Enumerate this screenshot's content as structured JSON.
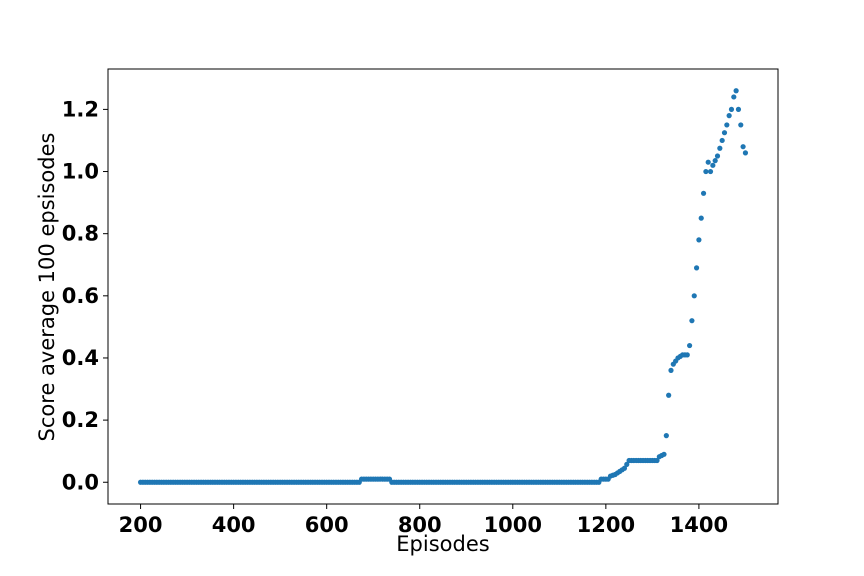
{
  "chart_data": {
    "type": "scatter",
    "title": "",
    "xlabel": "Episodes",
    "ylabel": "Score average 100 epsisodes",
    "xlim": [
      130,
      1570
    ],
    "ylim": [
      -0.07,
      1.33
    ],
    "grid": false,
    "legend": "none",
    "x_ticks": [
      200,
      400,
      600,
      800,
      1000,
      1200,
      1400
    ],
    "x_tick_labels": [
      "200",
      "400",
      "600",
      "800",
      "1000",
      "1200",
      "1400"
    ],
    "y_ticks": [
      0.0,
      0.2,
      0.4,
      0.6,
      0.8,
      1.0,
      1.2
    ],
    "y_tick_labels": [
      "0.0",
      "0.2",
      "0.4",
      "0.6",
      "0.8",
      "1.0",
      "1.2"
    ],
    "marker_color": "#1f77b4",
    "series": [
      {
        "x_start": 200,
        "x_step": 5,
        "x_end": 1500,
        "keypoints": [
          [
            200,
            0.0
          ],
          [
            670,
            0.0
          ],
          [
            675,
            0.01
          ],
          [
            735,
            0.01
          ],
          [
            740,
            0.0
          ],
          [
            1185,
            0.0
          ],
          [
            1190,
            0.01
          ],
          [
            1205,
            0.01
          ],
          [
            1210,
            0.02
          ],
          [
            1220,
            0.025
          ],
          [
            1230,
            0.035
          ],
          [
            1240,
            0.045
          ],
          [
            1250,
            0.07
          ],
          [
            1310,
            0.07
          ],
          [
            1312,
            0.08
          ],
          [
            1325,
            0.09
          ],
          [
            1330,
            0.15
          ],
          [
            1335,
            0.28
          ],
          [
            1340,
            0.36
          ],
          [
            1345,
            0.38
          ],
          [
            1355,
            0.4
          ],
          [
            1365,
            0.41
          ],
          [
            1375,
            0.41
          ],
          [
            1380,
            0.44
          ],
          [
            1390,
            0.6
          ],
          [
            1400,
            0.78
          ],
          [
            1405,
            0.85
          ],
          [
            1410,
            0.93
          ],
          [
            1415,
            1.0
          ],
          [
            1420,
            1.03
          ],
          [
            1425,
            1.0
          ],
          [
            1430,
            1.02
          ],
          [
            1440,
            1.05
          ],
          [
            1450,
            1.1
          ],
          [
            1460,
            1.15
          ],
          [
            1465,
            1.18
          ],
          [
            1470,
            1.2
          ],
          [
            1475,
            1.24
          ],
          [
            1480,
            1.26
          ],
          [
            1485,
            1.2
          ],
          [
            1490,
            1.15
          ],
          [
            1495,
            1.08
          ],
          [
            1500,
            1.06
          ]
        ]
      }
    ]
  }
}
